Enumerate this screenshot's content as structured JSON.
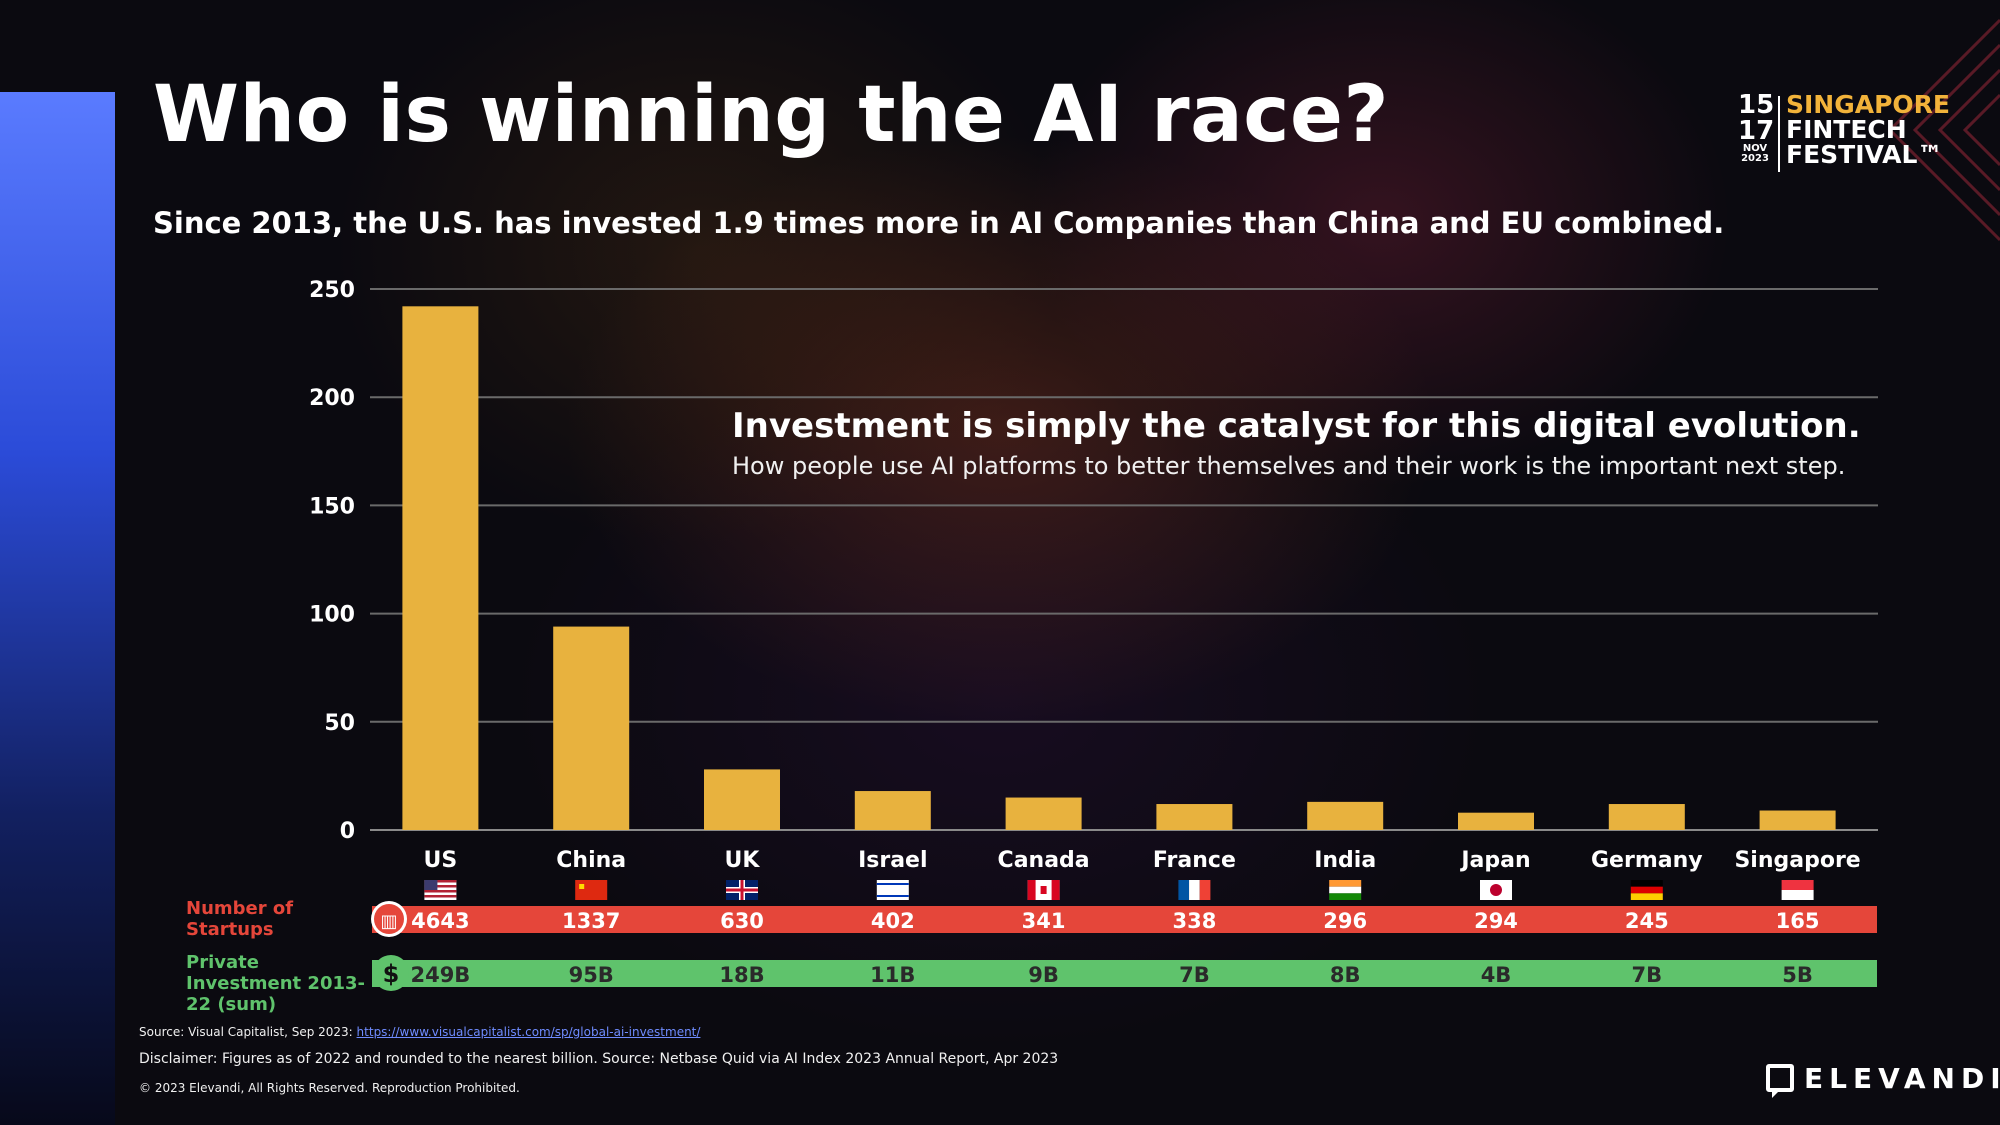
{
  "slide": {
    "title": "Who is winning the AI race?",
    "subtitle": "Since 2013, the U.S. has invested 1.9 times more in AI Companies than China and EU combined.",
    "callout_heading": "Investment is simply the catalyst for this digital evolution.",
    "callout_body": "How people use AI platforms to better themselves and their work is the important next step."
  },
  "logo": {
    "date_top": "15",
    "date_bottom": "17",
    "month": "NOV",
    "year": "2023",
    "line1": "SINGAPORE",
    "line2": "FINTECH",
    "line3": "FESTIVAL™"
  },
  "rows": {
    "startups_label": "Number of Startups",
    "investment_label": "Private Investment 2013-22 (sum)",
    "investment_symbol": "$"
  },
  "footer": {
    "source_prefix": "Source: Visual Capitalist, Sep 2023: ",
    "source_link": "https://www.visualcapitalist.com/sp/global-ai-investment/",
    "disclaimer": "Disclaimer: Figures as of 2022 and rounded to the nearest billion. Source: Netbase Quid via AI Index 2023 Annual Report, Apr 2023",
    "copyright": "© 2023 Elevandi, All Rights Reserved. Reproduction Prohibited.",
    "brand": "ELEVANDI"
  },
  "colors": {
    "bar": "#e8b23e",
    "startups_bar": "#e5463a",
    "investment_bar": "#5fc36c",
    "accent": "#4a68f0"
  },
  "chart_data": {
    "type": "bar",
    "categories": [
      "US",
      "China",
      "UK",
      "Israel",
      "Canada",
      "France",
      "India",
      "Japan",
      "Germany",
      "Singapore"
    ],
    "values": [
      242,
      94,
      28,
      18,
      15,
      12,
      13,
      8,
      12,
      9
    ],
    "yticks": [
      0,
      50,
      100,
      150,
      200,
      250
    ],
    "ylim": [
      0,
      250
    ],
    "grid": true,
    "startups": [
      "4643",
      "1337",
      "630",
      "402",
      "341",
      "338",
      "296",
      "294",
      "245",
      "165"
    ],
    "investment": [
      "249B",
      "95B",
      "18B",
      "11B",
      "9B",
      "7B",
      "8B",
      "4B",
      "7B",
      "5B"
    ],
    "flags": [
      "us-flag",
      "china-flag",
      "uk-flag",
      "israel-flag",
      "canada-flag",
      "france-flag",
      "india-flag",
      "japan-flag",
      "germany-flag",
      "singapore-flag"
    ]
  }
}
